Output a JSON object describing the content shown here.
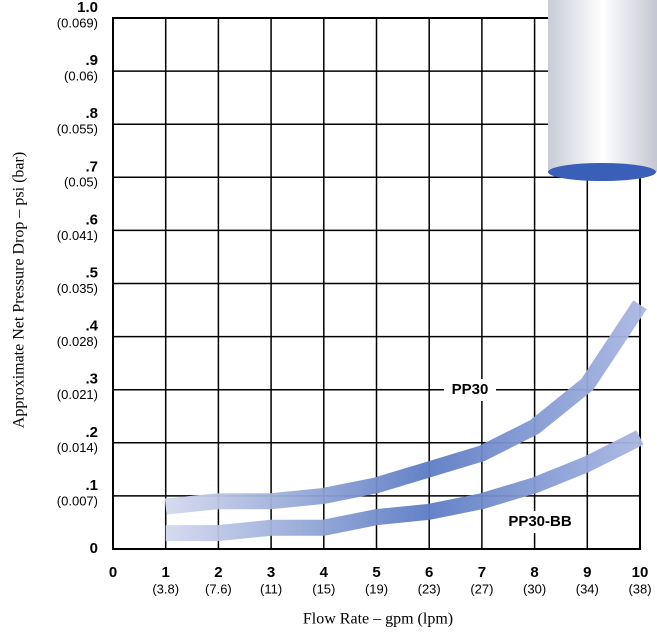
{
  "chart_data": {
    "type": "line",
    "x_label": "Flow Rate – gpm (lpm)",
    "y_label": "Approximate Net Pressure Drop – psi (bar)",
    "x": [
      1,
      2,
      3,
      4,
      5,
      6,
      7,
      8,
      9,
      10
    ],
    "series": [
      {
        "name": "PP30",
        "color": "#5d7cc4",
        "values": [
          0.08,
          0.09,
          0.09,
          0.1,
          0.12,
          0.15,
          0.18,
          0.23,
          0.31,
          0.46
        ]
      },
      {
        "name": "PP30-BB",
        "color": "#5d7cc4",
        "values": [
          0.03,
          0.03,
          0.04,
          0.04,
          0.06,
          0.07,
          0.09,
          0.12,
          0.16,
          0.21
        ]
      }
    ],
    "xlim": [
      0,
      10
    ],
    "ylim": [
      0,
      1
    ],
    "xticks": [
      0,
      {
        "value": 1,
        "label": "1",
        "alt_label": "(3.8)"
      },
      {
        "value": 2,
        "label": "2",
        "alt_label": "(7.6)"
      },
      {
        "value": 3,
        "label": "3",
        "alt_label": "(11)"
      },
      {
        "value": 4,
        "label": "4",
        "alt_label": "(15)"
      },
      {
        "value": 5,
        "label": "5",
        "alt_label": "(19)"
      },
      {
        "value": 6,
        "label": "6",
        "alt_label": "(23)"
      },
      {
        "value": 7,
        "label": "7",
        "alt_label": "(27)"
      },
      {
        "value": 8,
        "label": "8",
        "alt_label": "(30)"
      },
      {
        "value": 9,
        "label": "9",
        "alt_label": "(34)"
      },
      {
        "value": 10,
        "label": "10",
        "alt_label": "(38)"
      }
    ],
    "yticks": [
      0,
      {
        "value": 0.1,
        "label": ".1",
        "alt_label": "(0.007)"
      },
      {
        "value": 0.2,
        "label": ".2",
        "alt_label": "(0.014)"
      },
      {
        "value": 0.3,
        "label": ".3",
        "alt_label": "(0.021)"
      },
      {
        "value": 0.4,
        "label": ".4",
        "alt_label": "(0.028)"
      },
      {
        "value": 0.5,
        "label": ".5",
        "alt_label": "(0.035)"
      },
      {
        "value": 0.6,
        "label": ".6",
        "alt_label": "(0.041)"
      },
      {
        "value": 0.7,
        "label": ".7",
        "alt_label": "(0.05)"
      },
      {
        "value": 0.8,
        "label": ".8",
        "alt_label": "(0.055)"
      },
      {
        "value": 0.9,
        "label": ".9",
        "alt_label": "(0.06)"
      },
      {
        "value": 1,
        "label": "1.0",
        "alt_label": "(0.069)"
      }
    ],
    "grid": true
  }
}
